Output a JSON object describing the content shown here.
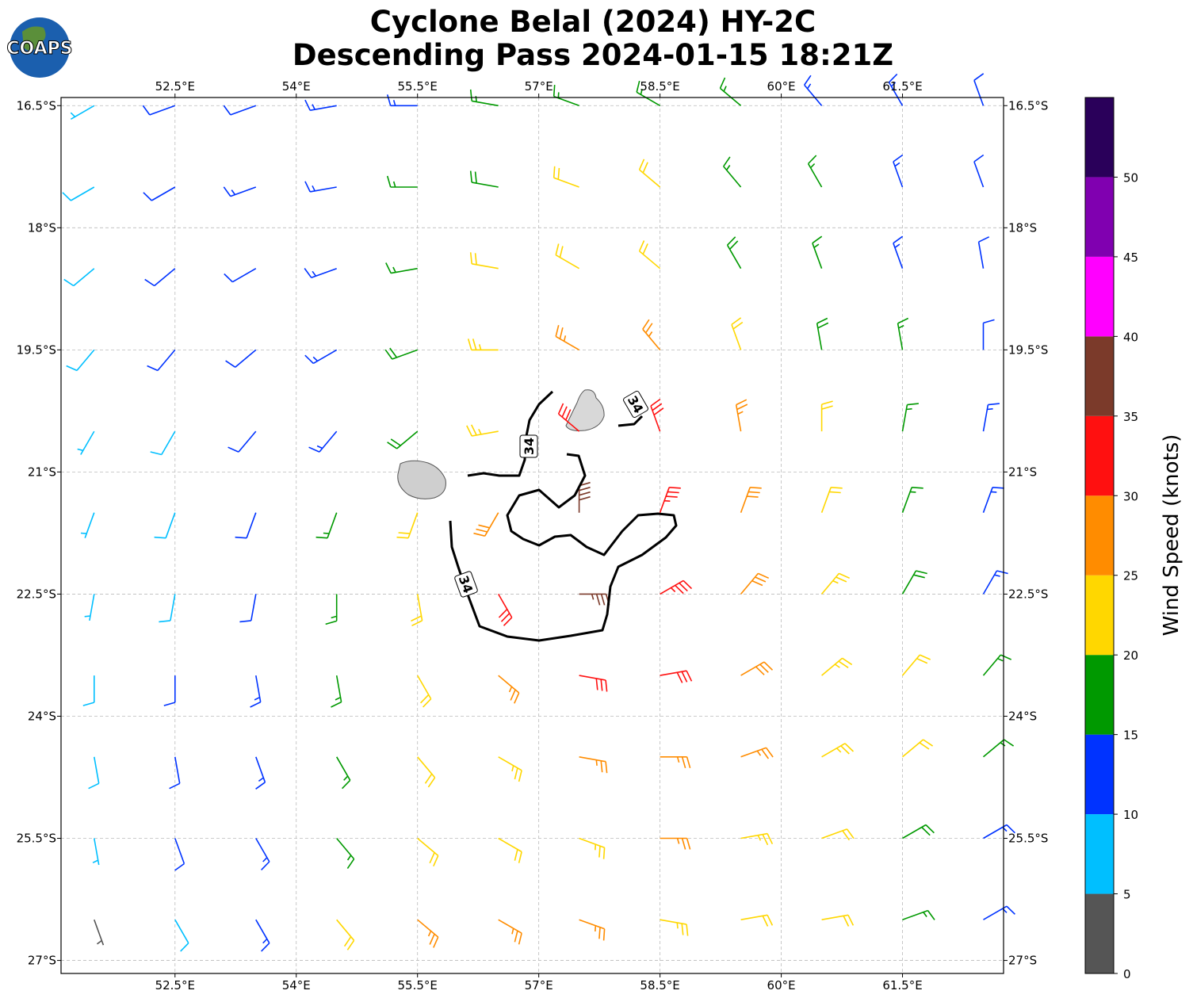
{
  "logo": "COAPS",
  "chart_data": {
    "type": "wind-barbs",
    "title": "Cyclone Belal (2024) HY-2C",
    "subtitle": "Descending Pass 2024-01-15 18:21Z",
    "xlim": [
      51.09,
      62.75
    ],
    "ylim": [
      -27.16,
      -16.4
    ],
    "xticks": [
      {
        "value": 52.5,
        "label": "52.5°E"
      },
      {
        "value": 54,
        "label": "54°E"
      },
      {
        "value": 55.5,
        "label": "55.5°E"
      },
      {
        "value": 57,
        "label": "57°E"
      },
      {
        "value": 58.5,
        "label": "58.5°E"
      },
      {
        "value": 60,
        "label": "60°E"
      },
      {
        "value": 61.5,
        "label": "61.5°E"
      }
    ],
    "yticks": [
      {
        "value": -16.5,
        "label": "16.5°S"
      },
      {
        "value": -18,
        "label": "18°S"
      },
      {
        "value": -19.5,
        "label": "19.5°S"
      },
      {
        "value": -21,
        "label": "21°S"
      },
      {
        "value": -22.5,
        "label": "22.5°S"
      },
      {
        "value": -24,
        "label": "24°S"
      },
      {
        "value": -25.5,
        "label": "25.5°S"
      },
      {
        "value": -27,
        "label": "27°S"
      }
    ],
    "grid": true,
    "lon": [
      51.5,
      52.5,
      53.5,
      54.5,
      55.5,
      56.5,
      57.5,
      58.5,
      59.5,
      60.5,
      61.5,
      62.5
    ],
    "lat": [
      -16.5,
      -17.5,
      -18.5,
      -19.5,
      -20.5,
      -21.5,
      -22.5,
      -23.5,
      -24.5,
      -25.5,
      -26.5
    ],
    "speed": [
      [
        7,
        10,
        12,
        13,
        14,
        16,
        17,
        16,
        15,
        14,
        13,
        12
      ],
      [
        8,
        11,
        13,
        14,
        16,
        18,
        20,
        20,
        17,
        15,
        13,
        12
      ],
      [
        9,
        11,
        12,
        14,
        16,
        21,
        22,
        22,
        19,
        16,
        14,
        12
      ],
      [
        8,
        10,
        12,
        14,
        18,
        23,
        27,
        26,
        22,
        18,
        15,
        12
      ],
      [
        7,
        9,
        11,
        14,
        19,
        24,
        30,
        32,
        26,
        20,
        16,
        13
      ],
      [
        6,
        8,
        11,
        15,
        21,
        28,
        38,
        34,
        28,
        22,
        17,
        14
      ],
      [
        7,
        9,
        12,
        16,
        22,
        30,
        37,
        34,
        29,
        23,
        18,
        14
      ],
      [
        8,
        10,
        13,
        17,
        22,
        27,
        31,
        31,
        28,
        24,
        20,
        16
      ],
      [
        8,
        10,
        13,
        17,
        21,
        24,
        26,
        27,
        26,
        23,
        20,
        16
      ],
      [
        7,
        10,
        13,
        17,
        20,
        22,
        24,
        25,
        23,
        21,
        18,
        14
      ],
      [
        3,
        8,
        14,
        20,
        25,
        26,
        25,
        24,
        22,
        20,
        17,
        14
      ]
    ],
    "direction": [
      [
        240,
        250,
        250,
        260,
        270,
        280,
        290,
        300,
        310,
        320,
        330,
        340
      ],
      [
        240,
        240,
        250,
        260,
        270,
        280,
        290,
        310,
        320,
        330,
        340,
        340
      ],
      [
        230,
        230,
        240,
        250,
        260,
        280,
        300,
        310,
        330,
        340,
        340,
        350
      ],
      [
        220,
        220,
        230,
        240,
        250,
        270,
        300,
        320,
        340,
        350,
        350,
        0
      ],
      [
        210,
        210,
        220,
        220,
        230,
        260,
        310,
        340,
        350,
        0,
        10,
        10
      ],
      [
        200,
        200,
        200,
        200,
        200,
        210,
        0,
        20,
        20,
        20,
        20,
        20
      ],
      [
        190,
        190,
        190,
        180,
        170,
        150,
        90,
        60,
        40,
        40,
        30,
        30
      ],
      [
        180,
        180,
        170,
        170,
        150,
        130,
        100,
        80,
        60,
        50,
        40,
        40
      ],
      [
        170,
        170,
        160,
        150,
        140,
        120,
        100,
        90,
        70,
        60,
        50,
        50
      ],
      [
        170,
        160,
        150,
        140,
        130,
        120,
        110,
        90,
        80,
        70,
        60,
        60
      ],
      [
        160,
        150,
        150,
        140,
        130,
        120,
        110,
        100,
        80,
        80,
        70,
        60
      ]
    ],
    "contour_level": 34,
    "colorbar": {
      "label": "Wind Speed (knots)",
      "lim": [
        0,
        55
      ],
      "bounds": [
        0,
        5,
        10,
        15,
        20,
        25,
        30,
        35,
        40,
        45,
        50,
        55
      ],
      "colors": [
        "#555555",
        "#00bfff",
        "#0033ff",
        "#009900",
        "#ffd700",
        "#ff8c00",
        "#ff1010",
        "#7b3a2a",
        "#ff00ff",
        "#8000b0",
        "#2a005a"
      ],
      "ticks": [
        0,
        5,
        10,
        15,
        20,
        25,
        30,
        35,
        40,
        45,
        50
      ]
    }
  }
}
